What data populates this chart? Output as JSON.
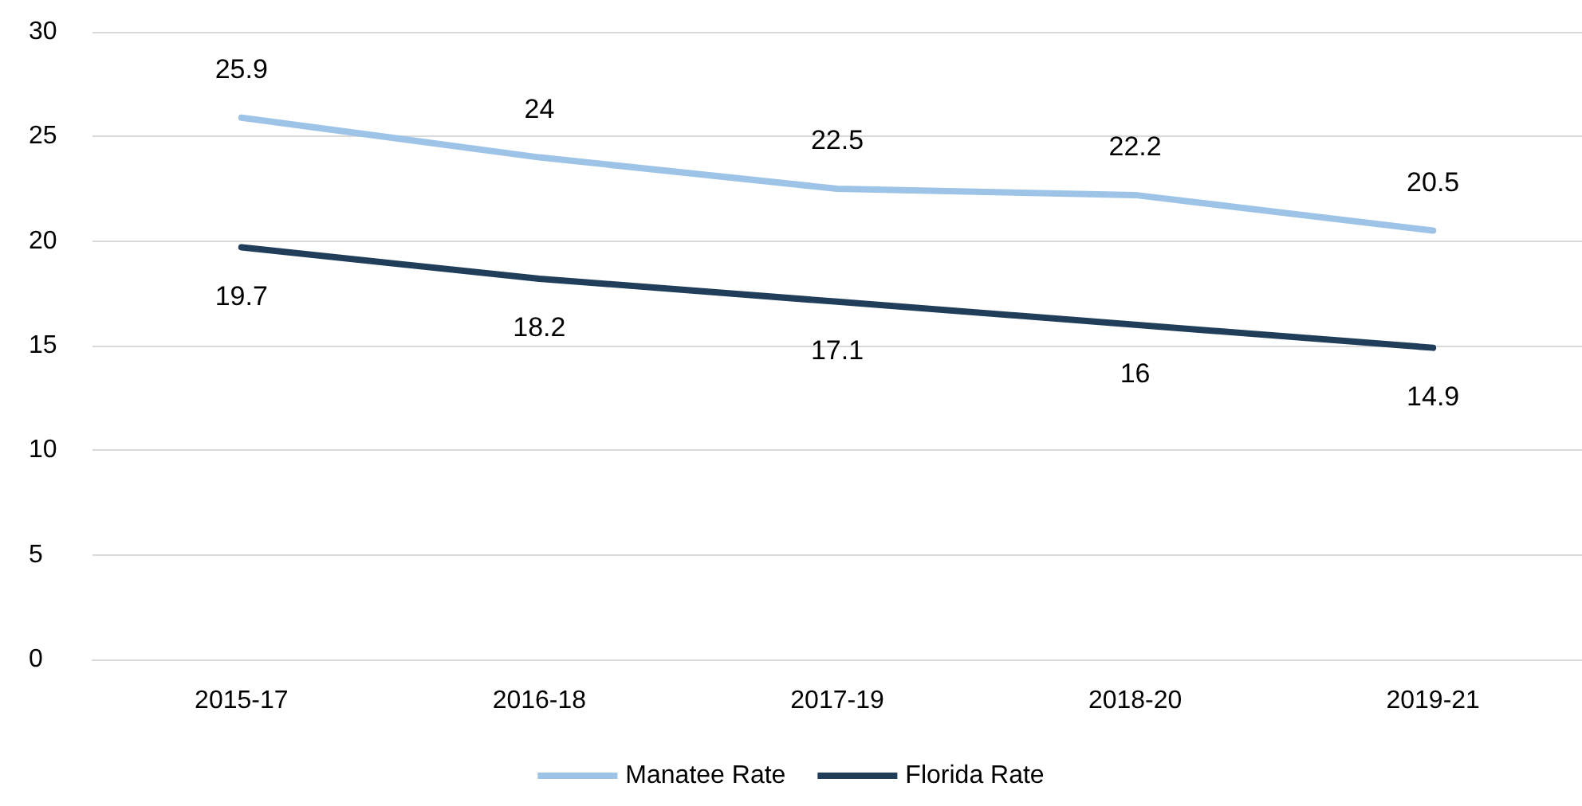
{
  "chart_data": {
    "type": "line",
    "categories": [
      "2015-17",
      "2016-18",
      "2017-19",
      "2018-20",
      "2019-21"
    ],
    "series": [
      {
        "name": "Manatee Rate",
        "color": "#9dc3e6",
        "values": [
          25.9,
          24,
          22.5,
          22.2,
          20.5
        ]
      },
      {
        "name": "Florida Rate",
        "color": "#203e5a",
        "values": [
          19.7,
          18.2,
          17.1,
          16,
          14.9
        ]
      }
    ],
    "ylim": [
      0,
      30
    ],
    "yticks": [
      0,
      5,
      10,
      15,
      20,
      25,
      30
    ],
    "grid": "y",
    "legend": "bottom",
    "data_labels": true
  }
}
